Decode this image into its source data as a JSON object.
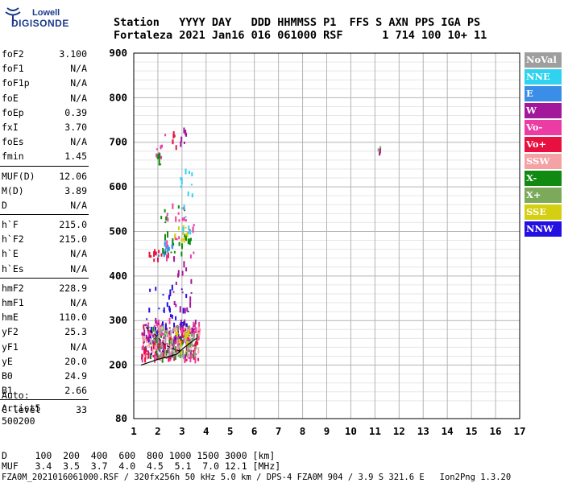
{
  "logo": {
    "brand": "Lowell",
    "name": "DIGISONDE"
  },
  "header": {
    "line1": "Station   YYYY DAY   DDD HHMMSS P1  FFS S AXN PPS IGA PS",
    "line2": "Fortaleza 2021 Jan16 016 061000 RSF      1 714 100 10+ 11"
  },
  "params": {
    "group1": [
      {
        "label": "foF2",
        "value": "3.100"
      },
      {
        "label": "foF1",
        "value": "N/A"
      },
      {
        "label": "foF1p",
        "value": "N/A"
      },
      {
        "label": "foE",
        "value": "N/A"
      },
      {
        "label": "foEp",
        "value": "0.39"
      },
      {
        "label": "fxI",
        "value": "3.70"
      },
      {
        "label": "foEs",
        "value": "N/A"
      },
      {
        "label": "fmin",
        "value": "1.45"
      }
    ],
    "group2": [
      {
        "label": "MUF(D)",
        "value": "12.06"
      },
      {
        "label": "M(D)",
        "value": "3.89"
      },
      {
        "label": "D",
        "value": "N/A"
      }
    ],
    "group3": [
      {
        "label": "h`F",
        "value": "215.0"
      },
      {
        "label": "h`F2",
        "value": "215.0"
      },
      {
        "label": "h`E",
        "value": "N/A"
      },
      {
        "label": "h`Es",
        "value": "N/A"
      }
    ],
    "group4": [
      {
        "label": "hmF2",
        "value": "228.9"
      },
      {
        "label": "hmF1",
        "value": "N/A"
      },
      {
        "label": "hmE",
        "value": "110.0"
      },
      {
        "label": "yF2",
        "value": "25.3"
      },
      {
        "label": "yF1",
        "value": "N/A"
      },
      {
        "label": "yE",
        "value": "20.0"
      },
      {
        "label": "B0",
        "value": "24.9"
      },
      {
        "label": "B1",
        "value": "2.66"
      }
    ],
    "group5": [
      {
        "label": "C-level",
        "value": "33"
      }
    ],
    "notes": [
      "Auto:",
      "Artist5",
      "500200"
    ]
  },
  "legend": [
    {
      "label": "NoVal",
      "color": "#9e9e9e"
    },
    {
      "label": "NNE",
      "color": "#2fd3f0"
    },
    {
      "label": "E",
      "color": "#3a8ee8"
    },
    {
      "label": "W",
      "color": "#a3189a"
    },
    {
      "label": "Vo-",
      "color": "#ec3ca4"
    },
    {
      "label": "Vo+",
      "color": "#e8103e"
    },
    {
      "label": "SSW",
      "color": "#f4a2a6"
    },
    {
      "label": "X-",
      "color": "#108a10"
    },
    {
      "label": "X+",
      "color": "#7aaa5a"
    },
    {
      "label": "SSE",
      "color": "#d4cf10"
    },
    {
      "label": "NNW",
      "color": "#2410e0"
    }
  ],
  "footer": {
    "d_line": "D     100  200  400  600  800 1000 1500 3000 [km]",
    "muf_line": "MUF   3.4  3.5  3.7  4.0  4.5  5.1  7.0 12.1 [MHz]",
    "info": "FZA0M_2021016061000.RSF / 320fx256h 50 kHz 5.0 km / DPS-4 FZA0M 904 / 3.9 S 321.6 E   Ion2Png 1.3.20"
  },
  "chart_data": {
    "type": "scatter",
    "x": {
      "min": 1,
      "max": 17,
      "ticks": [
        1,
        2,
        3,
        4,
        5,
        6,
        7,
        8,
        9,
        10,
        11,
        12,
        13,
        14,
        15,
        16,
        17
      ]
    },
    "y": {
      "min": 80,
      "max": 900,
      "ticks": [
        80,
        200,
        300,
        400,
        500,
        600,
        700,
        800,
        900
      ]
    },
    "grid": true,
    "legend_position": "right",
    "clusters": [
      {
        "series": "X-",
        "x": [
          1.4,
          3.6
        ],
        "y": [
          210,
          290
        ],
        "n": 70
      },
      {
        "series": "Vo+",
        "x": [
          1.3,
          3.7
        ],
        "y": [
          210,
          290
        ],
        "n": 90
      },
      {
        "series": "Vo-",
        "x": [
          1.3,
          3.7
        ],
        "y": [
          210,
          300
        ],
        "n": 80
      },
      {
        "series": "W",
        "x": [
          1.3,
          3.6
        ],
        "y": [
          215,
          300
        ],
        "n": 70
      },
      {
        "series": "NNW",
        "x": [
          1.5,
          3.3
        ],
        "y": [
          220,
          380
        ],
        "n": 45
      },
      {
        "series": "SSW",
        "x": [
          1.3,
          3.8
        ],
        "y": [
          210,
          290
        ],
        "n": 40
      },
      {
        "series": "X+",
        "x": [
          1.8,
          3.6
        ],
        "y": [
          220,
          290
        ],
        "n": 30
      },
      {
        "series": "NoVal",
        "x": [
          1.8,
          3.5
        ],
        "y": [
          215,
          280
        ],
        "n": 30
      },
      {
        "series": "SSE",
        "x": [
          2.5,
          3.4
        ],
        "y": [
          230,
          280
        ],
        "n": 15
      },
      {
        "series": "Vo+",
        "x": [
          1.6,
          2.4
        ],
        "y": [
          435,
          455
        ],
        "n": 12
      },
      {
        "series": "E",
        "x": [
          2.0,
          2.7
        ],
        "y": [
          445,
          475
        ],
        "n": 14
      },
      {
        "series": "X-",
        "x": [
          2.1,
          3.4
        ],
        "y": [
          440,
          560
        ],
        "n": 25
      },
      {
        "series": "SSE",
        "x": [
          2.6,
          3.2
        ],
        "y": [
          480,
          510
        ],
        "n": 12
      },
      {
        "series": "NNE",
        "x": [
          2.9,
          3.4
        ],
        "y": [
          480,
          640
        ],
        "n": 16
      },
      {
        "series": "Vo-",
        "x": [
          2.2,
          3.5
        ],
        "y": [
          440,
          560
        ],
        "n": 22
      },
      {
        "series": "W",
        "x": [
          2.6,
          3.4
        ],
        "y": [
          320,
          440
        ],
        "n": 18
      },
      {
        "series": "Vo-",
        "x": [
          1.9,
          2.3
        ],
        "y": [
          650,
          720
        ],
        "n": 8
      },
      {
        "series": "X-",
        "x": [
          1.9,
          2.1
        ],
        "y": [
          650,
          670
        ],
        "n": 5
      },
      {
        "series": "Vo+",
        "x": [
          2.4,
          2.8
        ],
        "y": [
          680,
          720
        ],
        "n": 6
      },
      {
        "series": "W",
        "x": [
          2.9,
          3.2
        ],
        "y": [
          690,
          740
        ],
        "n": 6
      },
      {
        "series": "W",
        "x": [
          11.1,
          11.2
        ],
        "y": [
          670,
          690
        ],
        "n": 3
      },
      {
        "series": "X+",
        "x": [
          11.1,
          11.2
        ],
        "y": [
          680,
          690
        ],
        "n": 2
      }
    ],
    "traces": [
      {
        "name": "profile",
        "points": [
          [
            1.3,
            200
          ],
          [
            2.0,
            213
          ],
          [
            2.5,
            220
          ],
          [
            2.8,
            225
          ],
          [
            3.1,
            240
          ],
          [
            3.6,
            260
          ]
        ]
      },
      {
        "name": "h-prime",
        "points": [
          [
            1.5,
            285
          ],
          [
            1.9,
            268
          ],
          [
            2.3,
            245
          ],
          [
            2.7,
            235
          ],
          [
            3.0,
            230
          ]
        ],
        "dashed": true
      }
    ]
  }
}
